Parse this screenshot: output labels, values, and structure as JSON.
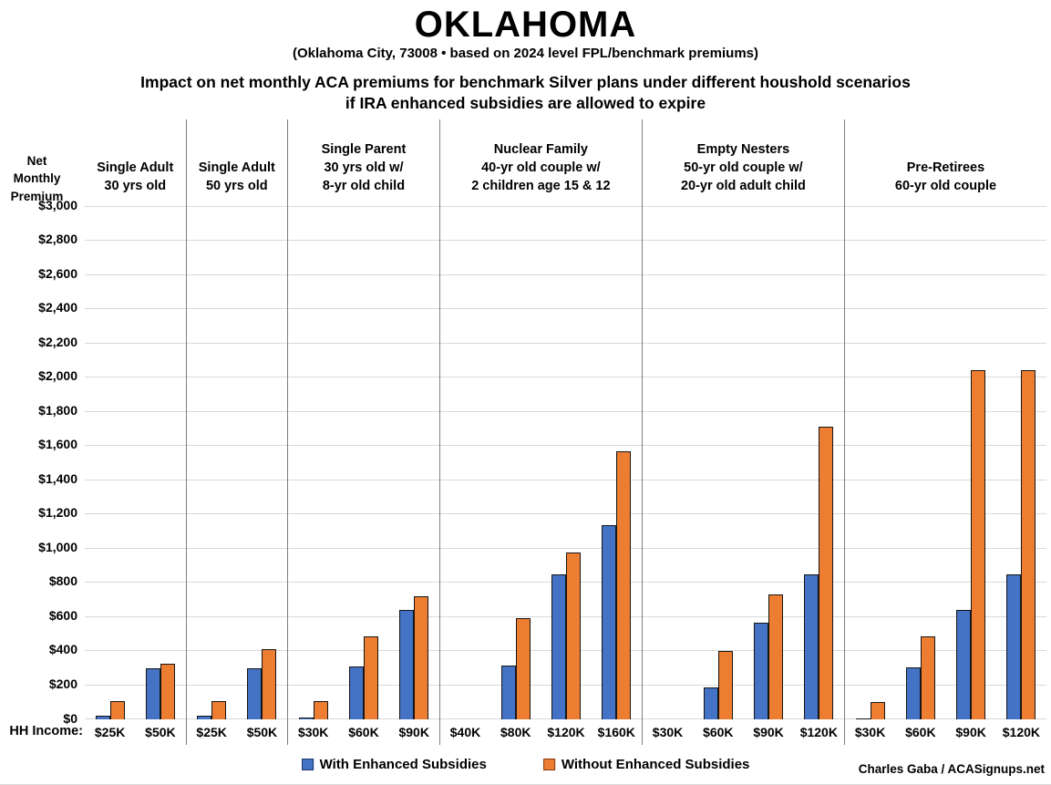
{
  "header": {
    "title": "OKLAHOMA",
    "subtitle": "(Oklahoma City, 73008 • based on 2024 level FPL/benchmark premiums)",
    "heading_line1": "Impact on net monthly ACA premiums for benchmark Silver plans under different houshold scenarios",
    "heading_line2": "if IRA enhanced subsidies are allowed to expire"
  },
  "axis": {
    "title_lines": [
      "Net",
      "Monthly",
      "Premium"
    ],
    "hh_income_label": "HH Income:"
  },
  "legend": {
    "items": [
      {
        "label": "With Enhanced Subsidies",
        "color": "#4472C4",
        "swatch_border": "#1F3864"
      },
      {
        "label": "Without Enhanced Subsidies",
        "color": "#ED7D31",
        "swatch_border": "#843C0C"
      }
    ]
  },
  "credit": "Charles Gaba / ACASignups.net",
  "chart_data": {
    "type": "bar",
    "title": "Impact on net monthly ACA premiums for benchmark Silver plans under different houshold scenarios if IRA enhanced subsidies are allowed to expire",
    "ylabel": "Net Monthly Premium",
    "xlabel": "HH Income",
    "ylim": [
      0,
      3000
    ],
    "ytick_step": 200,
    "grid": true,
    "legend_position": "bottom",
    "series_names": [
      "With Enhanced Subsidies",
      "Without Enhanced Subsidies"
    ],
    "colors": {
      "With Enhanced Subsidies": "#4472C4",
      "Without Enhanced Subsidies": "#ED7D31"
    },
    "gridline_color": "#D9D9D9",
    "divider_color": "#7F7F7F",
    "groups": [
      {
        "label_lines": [
          "Single Adult",
          "30 yrs old"
        ],
        "incomes": [
          "$25K",
          "$50K"
        ],
        "with_enhanced": [
          20,
          295
        ],
        "without_enhanced": [
          105,
          320
        ]
      },
      {
        "label_lines": [
          "Single Adult",
          "50 yrs old"
        ],
        "incomes": [
          "$25K",
          "$50K"
        ],
        "with_enhanced": [
          20,
          295
        ],
        "without_enhanced": [
          105,
          410
        ]
      },
      {
        "label_lines": [
          "Single Parent",
          "30 yrs old w/",
          "8-yr old child"
        ],
        "incomes": [
          "$30K",
          "$60K",
          "$90K"
        ],
        "with_enhanced": [
          10,
          305,
          635
        ],
        "without_enhanced": [
          105,
          485,
          715
        ]
      },
      {
        "label_lines": [
          "Nuclear Family",
          "40-yr old couple w/",
          "2 children age 15 & 12"
        ],
        "incomes": [
          "$40K",
          "$80K",
          "$120K",
          "$160K"
        ],
        "with_enhanced": [
          0,
          310,
          845,
          1130
        ],
        "without_enhanced": [
          0,
          590,
          975,
          1565
        ]
      },
      {
        "label_lines": [
          "Empty Nesters",
          "50-yr old couple w/",
          "20-yr old adult child"
        ],
        "incomes": [
          "$30K",
          "$60K",
          "$90K",
          "$120K"
        ],
        "with_enhanced": [
          0,
          185,
          565,
          845
        ],
        "without_enhanced": [
          0,
          395,
          730,
          1710
        ]
      },
      {
        "label_lines": [
          "Pre-Retirees",
          "60-yr old couple"
        ],
        "incomes": [
          "$30K",
          "$60K",
          "$90K",
          "$120K"
        ],
        "with_enhanced": [
          5,
          300,
          635,
          845
        ],
        "without_enhanced": [
          100,
          485,
          2040,
          2040
        ]
      }
    ]
  }
}
